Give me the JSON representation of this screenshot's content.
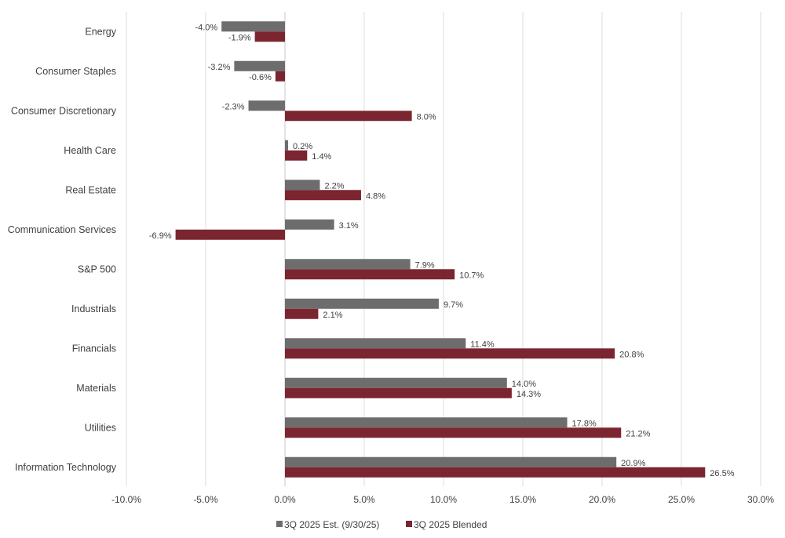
{
  "chart_data": {
    "type": "bar",
    "orientation": "horizontal",
    "categories": [
      "Energy",
      "Consumer Staples",
      "Consumer Discretionary",
      "Health Care",
      "Real Estate",
      "Communication Services",
      "S&P 500",
      "Industrials",
      "Financials",
      "Materials",
      "Utilities",
      "Information Technology"
    ],
    "series": [
      {
        "name": "3Q 2025 Est. (9/30/25)",
        "color": "#6d6d6d",
        "values": [
          -4.0,
          -3.2,
          -2.3,
          0.2,
          2.2,
          3.1,
          7.9,
          9.7,
          11.4,
          14.0,
          17.8,
          20.9
        ]
      },
      {
        "name": "3Q 2025 Blended",
        "color": "#7b2530",
        "values": [
          -1.9,
          -0.6,
          8.0,
          1.4,
          4.8,
          -6.9,
          10.7,
          2.1,
          20.8,
          14.3,
          21.2,
          26.5
        ]
      }
    ],
    "xlim": [
      -10,
      30
    ],
    "xticks": [
      -10,
      -5,
      0,
      5,
      10,
      15,
      20,
      25,
      30
    ],
    "tick_format": "%",
    "grid": "vertical",
    "legend": "bottom",
    "title": "",
    "xlabel": "",
    "ylabel": ""
  }
}
